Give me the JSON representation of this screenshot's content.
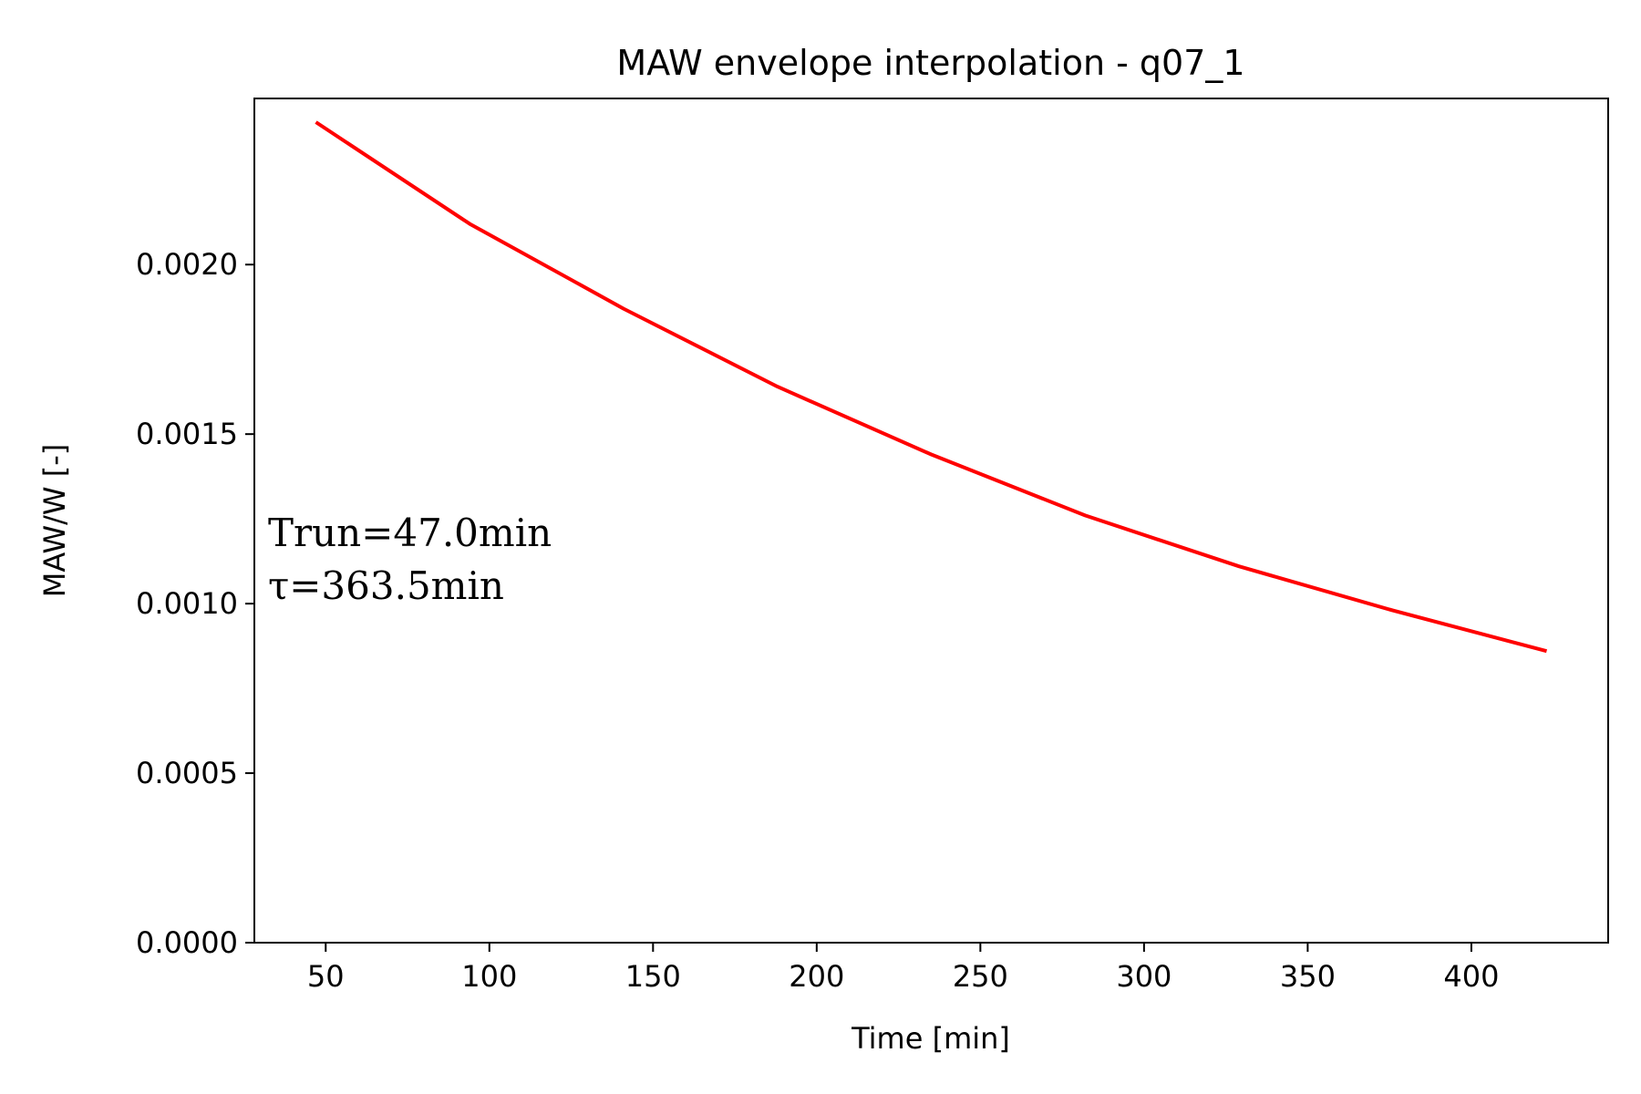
{
  "chart_data": {
    "type": "line",
    "title": "MAW envelope interpolation - q07_1",
    "xlabel": "Time [min]",
    "ylabel": "MAW/W [-]",
    "xlim": [
      28.2,
      441.8
    ],
    "ylim": [
      0.0,
      0.00249
    ],
    "xticks": [
      50,
      100,
      150,
      200,
      250,
      300,
      350,
      400
    ],
    "yticks": [
      0.0,
      0.0005,
      0.001,
      0.0015,
      0.002
    ],
    "ytick_labels": [
      "0.0000",
      "0.0005",
      "0.0010",
      "0.0015",
      "0.0020"
    ],
    "grid": false,
    "series": [
      {
        "color": "#ff0000",
        "x": [
          47.0,
          94.0,
          141.0,
          188.0,
          235.0,
          282.0,
          329.0,
          376.0,
          423.0
        ],
        "y": [
          0.00242,
          0.00212,
          0.00187,
          0.00164,
          0.00144,
          0.00126,
          0.00111,
          0.00098,
          0.00086
        ]
      }
    ],
    "annotations": [
      "Trun=47.0min",
      "τ=363.5min"
    ]
  }
}
